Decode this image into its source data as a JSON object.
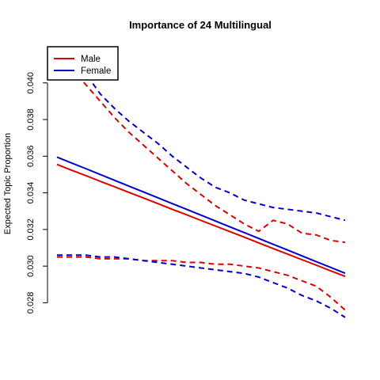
{
  "chart_data": {
    "type": "line",
    "title": "Importance of 24 Multilingual",
    "xlabel": "",
    "ylabel": "Expected Topic Proportion",
    "xlim": [
      0,
      1
    ],
    "ylim": [
      0.0275,
      0.0415
    ],
    "yticks": [
      0.028,
      0.03,
      0.032,
      0.034,
      0.036,
      0.038,
      0.04
    ],
    "ytick_labels": [
      "0.028",
      "0.030",
      "0.032",
      "0.034",
      "0.036",
      "0.038",
      "0.040"
    ],
    "grid": false,
    "legend": {
      "position": "top-left"
    },
    "x": [
      0.0,
      0.05,
      0.1,
      0.15,
      0.2,
      0.25,
      0.3,
      0.35,
      0.4,
      0.45,
      0.5,
      0.55,
      0.6,
      0.65,
      0.7,
      0.75,
      0.8,
      0.85,
      0.9,
      0.95,
      1.0
    ],
    "series": [
      {
        "name": "Male",
        "color": "#dd0000",
        "style": "solid",
        "values": [
          0.03555,
          0.03524,
          0.03494,
          0.03463,
          0.03433,
          0.03402,
          0.03372,
          0.03341,
          0.0331,
          0.0328,
          0.03249,
          0.03219,
          0.03188,
          0.03158,
          0.03127,
          0.03096,
          0.03066,
          0.03035,
          0.03005,
          0.02974,
          0.02944
        ]
      },
      {
        "name": "Female",
        "color": "#0000cc",
        "style": "solid",
        "values": [
          0.03595,
          0.03563,
          0.03532,
          0.035,
          0.03468,
          0.03436,
          0.03405,
          0.03373,
          0.03341,
          0.0331,
          0.03278,
          0.03246,
          0.03214,
          0.03183,
          0.03151,
          0.03119,
          0.03088,
          0.03056,
          0.03024,
          0.02993,
          0.02961
        ]
      },
      {
        "name": "Male upper CI",
        "color": "#dd0000",
        "style": "dashed",
        "values": [
          0.0415,
          0.0408,
          0.0399,
          0.039,
          0.0381,
          0.0373,
          0.0366,
          0.0359,
          0.0352,
          0.0345,
          0.0339,
          0.0333,
          0.0328,
          0.0323,
          0.0319,
          0.0325,
          0.0323,
          0.0318,
          0.0317,
          0.0314,
          0.0313
        ]
      },
      {
        "name": "Male lower CI",
        "color": "#dd0000",
        "style": "dashed",
        "values": [
          0.0305,
          0.0305,
          0.0305,
          0.0304,
          0.0304,
          0.0304,
          0.0303,
          0.0303,
          0.0303,
          0.0302,
          0.0302,
          0.0301,
          0.0301,
          0.03,
          0.0299,
          0.0297,
          0.0295,
          0.0292,
          0.0289,
          0.0283,
          0.0276
        ]
      },
      {
        "name": "Female upper CI",
        "color": "#0000cc",
        "style": "dashed",
        "values": [
          0.0415,
          0.0413,
          0.0405,
          0.0394,
          0.0386,
          0.0379,
          0.0373,
          0.0367,
          0.036,
          0.0354,
          0.0348,
          0.0343,
          0.034,
          0.0336,
          0.0334,
          0.0332,
          0.0331,
          0.033,
          0.0329,
          0.0327,
          0.0325
        ]
      },
      {
        "name": "Female lower CI",
        "color": "#0000cc",
        "style": "dashed",
        "values": [
          0.0306,
          0.0306,
          0.0306,
          0.0305,
          0.0305,
          0.0304,
          0.0303,
          0.0302,
          0.0301,
          0.03,
          0.0299,
          0.0298,
          0.0297,
          0.0296,
          0.0294,
          0.0291,
          0.0288,
          0.0284,
          0.0281,
          0.0277,
          0.0272
        ]
      }
    ],
    "legend_entries": [
      {
        "label": "Male",
        "color": "#dd0000"
      },
      {
        "label": "Female",
        "color": "#0000cc"
      }
    ]
  }
}
